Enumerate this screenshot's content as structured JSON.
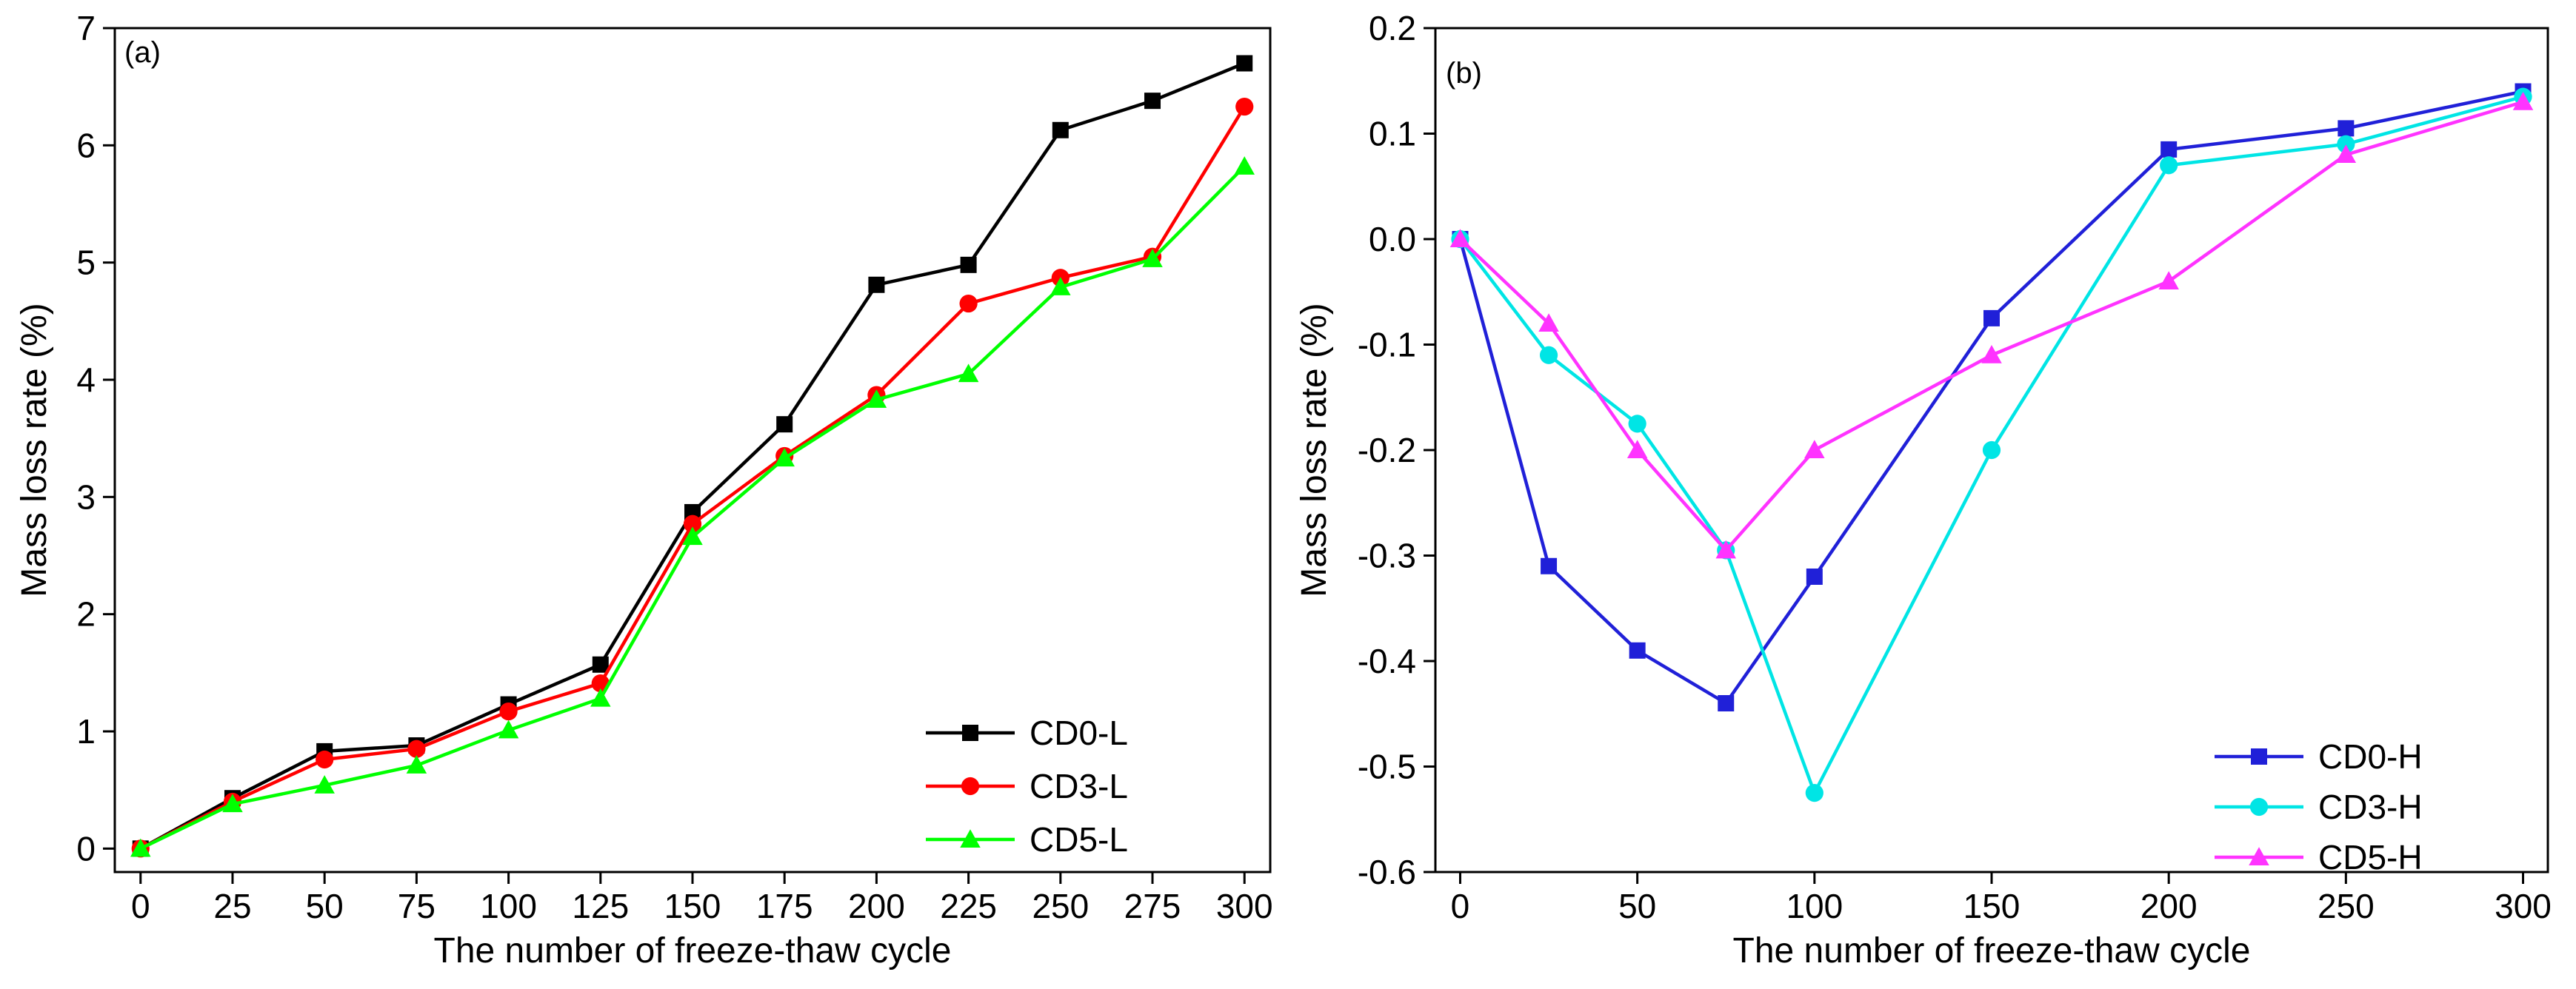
{
  "chart_data": [
    {
      "panel": "(a)",
      "type": "line",
      "xlabel": "The number of freeze-thaw cycle",
      "ylabel": "Mass loss rate (%)",
      "xlim": [
        -7,
        307
      ],
      "ylim": [
        -0.2,
        7.0
      ],
      "xticks": [
        0,
        25,
        50,
        75,
        100,
        125,
        150,
        175,
        200,
        225,
        250,
        275,
        300
      ],
      "yticks": [
        0,
        1,
        2,
        3,
        4,
        5,
        6,
        7
      ],
      "legend_position": "bottom-right",
      "series": [
        {
          "name": "CD0-L",
          "color": "#000000",
          "marker": "square",
          "x": [
            0,
            25,
            50,
            75,
            100,
            125,
            150,
            175,
            200,
            225,
            250,
            275,
            300
          ],
          "y": [
            0.0,
            0.43,
            0.83,
            0.88,
            1.23,
            1.57,
            2.87,
            3.62,
            4.81,
            4.98,
            6.13,
            6.38,
            6.7
          ]
        },
        {
          "name": "CD3-L",
          "color": "#ff0000",
          "marker": "circle",
          "x": [
            0,
            25,
            50,
            75,
            100,
            125,
            150,
            175,
            200,
            225,
            250,
            275,
            300
          ],
          "y": [
            0.0,
            0.4,
            0.76,
            0.85,
            1.17,
            1.41,
            2.77,
            3.35,
            3.87,
            4.65,
            4.87,
            5.05,
            6.33
          ]
        },
        {
          "name": "CD5-L",
          "color": "#00ff00",
          "marker": "triangle",
          "x": [
            0,
            25,
            50,
            75,
            100,
            125,
            150,
            175,
            200,
            225,
            250,
            275,
            300
          ],
          "y": [
            0.0,
            0.38,
            0.54,
            0.71,
            1.01,
            1.28,
            2.66,
            3.33,
            3.83,
            4.05,
            4.79,
            5.03,
            5.82
          ]
        }
      ]
    },
    {
      "panel": "(b)",
      "type": "line",
      "xlabel": "The number of freeze-thaw cycle",
      "ylabel": "Mass loss rate (%)",
      "xlim": [
        -7,
        307
      ],
      "ylim": [
        -0.6,
        0.2
      ],
      "xticks": [
        0,
        50,
        100,
        150,
        200,
        250,
        300
      ],
      "yticks": [
        -0.6,
        -0.5,
        -0.4,
        -0.3,
        -0.2,
        -0.1,
        0.0,
        0.1,
        0.2
      ],
      "ytick_labels": [
        "-0.6",
        "-0.5",
        "-0.4",
        "-0.3",
        "-0.2",
        "-0.1",
        "0.0",
        "0.1",
        "0.2"
      ],
      "legend_position": "bottom-right",
      "series": [
        {
          "name": "CD0-H",
          "color": "#2020d8",
          "marker": "square",
          "x": [
            0,
            25,
            50,
            75,
            100,
            150,
            200,
            250,
            300
          ],
          "y": [
            0.0,
            -0.31,
            -0.39,
            -0.44,
            -0.32,
            -0.075,
            0.085,
            0.105,
            0.14
          ]
        },
        {
          "name": "CD3-H",
          "color": "#00e5e5",
          "marker": "circle",
          "x": [
            0,
            25,
            50,
            75,
            100,
            150,
            200,
            250,
            300
          ],
          "y": [
            0.0,
            -0.11,
            -0.175,
            -0.295,
            -0.525,
            -0.2,
            0.07,
            0.09,
            0.135
          ]
        },
        {
          "name": "CD5-H",
          "color": "#ff33ff",
          "marker": "triangle",
          "x": [
            0,
            25,
            50,
            75,
            100,
            150,
            200,
            250,
            300
          ],
          "y": [
            0.0,
            -0.08,
            -0.2,
            -0.295,
            -0.2,
            -0.11,
            -0.04,
            0.08,
            0.13
          ]
        }
      ]
    }
  ]
}
